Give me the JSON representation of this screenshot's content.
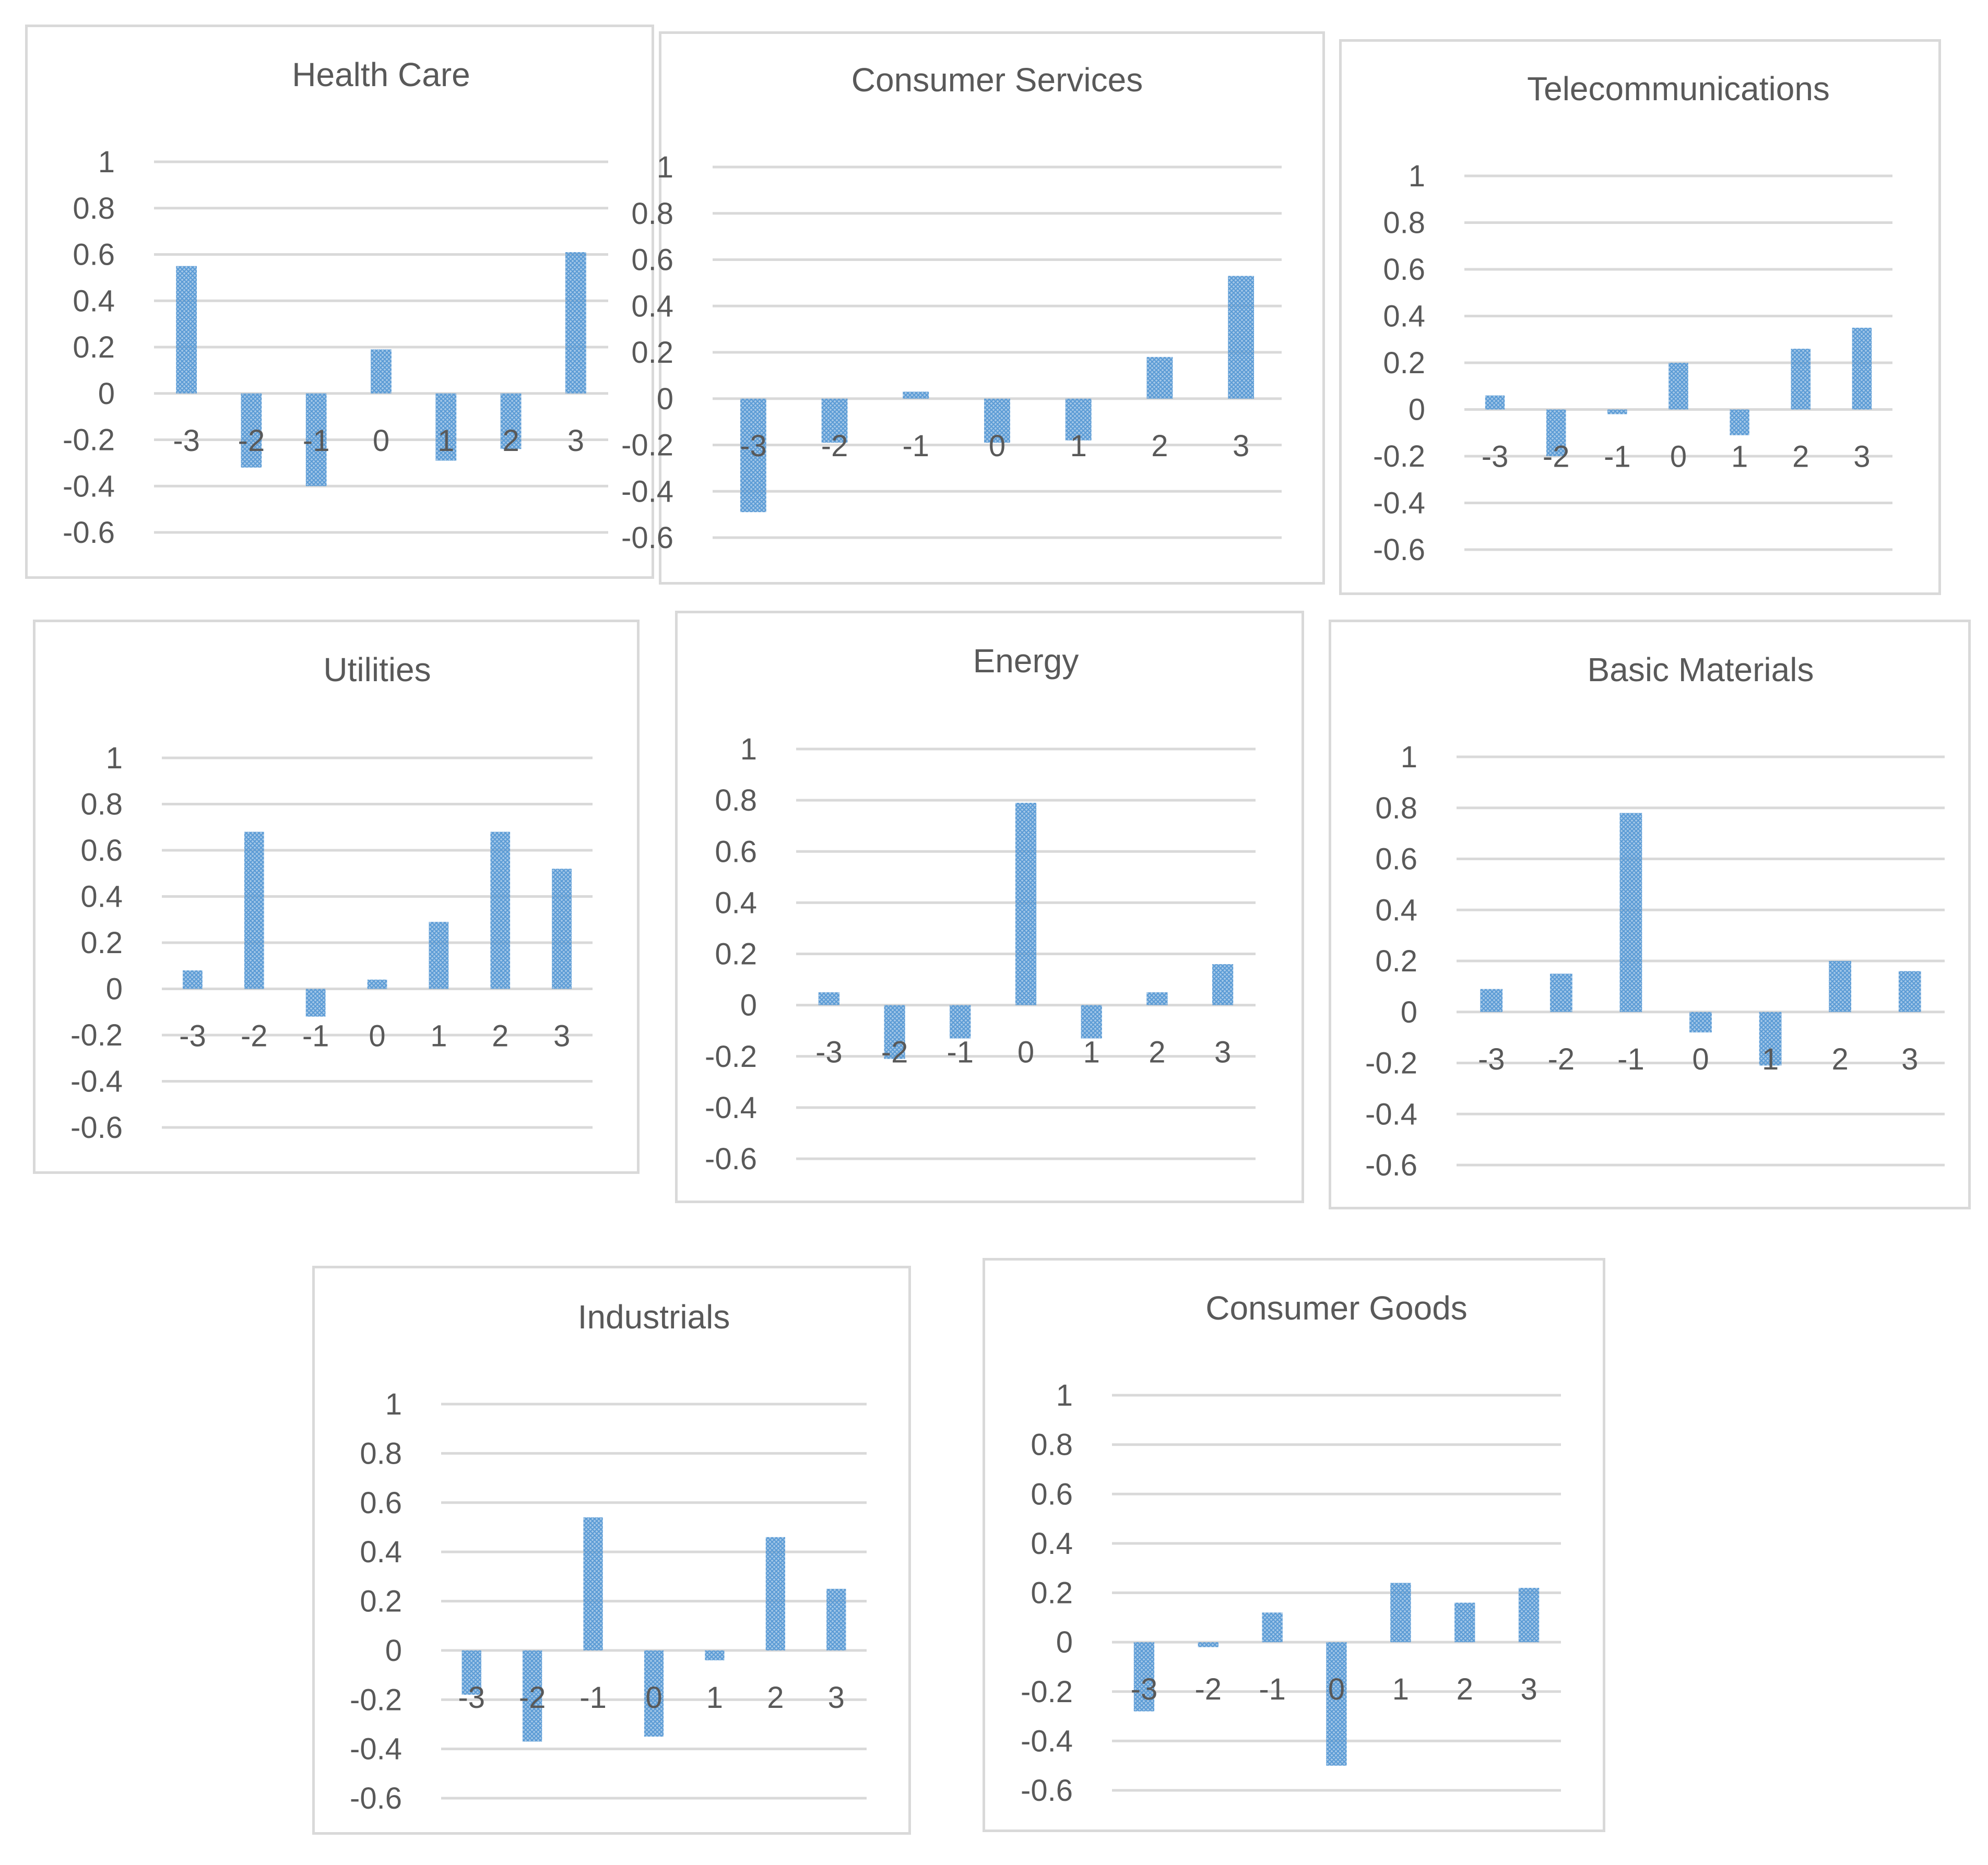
{
  "colors": {
    "bar": "#5b9bd5",
    "grid": "#d9d9d9",
    "text": "#595959",
    "border": "#d9d9d9"
  },
  "chart_data": [
    {
      "type": "bar",
      "title": "Health Care",
      "categories": [
        "-3",
        "-2",
        "-1",
        "0",
        "1",
        "2",
        "3"
      ],
      "values": [
        0.55,
        -0.32,
        -0.4,
        0.19,
        -0.29,
        -0.24,
        0.61
      ],
      "ylim": [
        -0.6,
        1
      ],
      "yticks": [
        "1",
        "0.8",
        "0.6",
        "0.4",
        "0.2",
        "0",
        "-0.2",
        "-0.4",
        "-0.6"
      ],
      "grid": true,
      "legend": "none"
    },
    {
      "type": "bar",
      "title": "Consumer Services",
      "categories": [
        "-3",
        "-2",
        "-1",
        "0",
        "1",
        "2",
        "3"
      ],
      "values": [
        -0.49,
        -0.19,
        0.03,
        -0.19,
        -0.18,
        0.18,
        0.53
      ],
      "ylim": [
        -0.6,
        1
      ],
      "yticks": [
        "1",
        "0.8",
        "0.6",
        "0.4",
        "0.2",
        "0",
        "-0.2",
        "-0.4",
        "-0.6"
      ],
      "grid": true,
      "legend": "none"
    },
    {
      "type": "bar",
      "title": "Telecommunications",
      "categories": [
        "-3",
        "-2",
        "-1",
        "0",
        "1",
        "2",
        "3"
      ],
      "values": [
        0.06,
        -0.2,
        -0.02,
        0.2,
        -0.11,
        0.26,
        0.35
      ],
      "ylim": [
        -0.6,
        1
      ],
      "yticks": [
        "1",
        "0.8",
        "0.6",
        "0.4",
        "0.2",
        "0",
        "-0.2",
        "-0.4",
        "-0.6"
      ],
      "grid": true,
      "legend": "none"
    },
    {
      "type": "bar",
      "title": "Utilities",
      "categories": [
        "-3",
        "-2",
        "-1",
        "0",
        "1",
        "2",
        "3"
      ],
      "values": [
        0.08,
        0.68,
        -0.12,
        0.04,
        0.29,
        0.68,
        0.52
      ],
      "ylim": [
        -0.6,
        1
      ],
      "yticks": [
        "1",
        "0.8",
        "0.6",
        "0.4",
        "0.2",
        "0",
        "-0.2",
        "-0.4",
        "-0.6"
      ],
      "grid": true,
      "legend": "none"
    },
    {
      "type": "bar",
      "title": "Energy",
      "categories": [
        "-3",
        "-2",
        "-1",
        "0",
        "1",
        "2",
        "3"
      ],
      "values": [
        0.05,
        -0.21,
        -0.13,
        0.79,
        -0.13,
        0.05,
        0.16
      ],
      "ylim": [
        -0.6,
        1
      ],
      "yticks": [
        "1",
        "0.8",
        "0.6",
        "0.4",
        "0.2",
        "0",
        "-0.2",
        "-0.4",
        "-0.6"
      ],
      "grid": true,
      "legend": "none"
    },
    {
      "type": "bar",
      "title": "Basic Materials",
      "categories": [
        "-3",
        "-2",
        "-1",
        "0",
        "1",
        "2",
        "3"
      ],
      "values": [
        0.09,
        0.15,
        0.78,
        -0.08,
        -0.21,
        0.2,
        0.16
      ],
      "ylim": [
        -0.6,
        1
      ],
      "yticks": [
        "1",
        "0.8",
        "0.6",
        "0.4",
        "0.2",
        "0",
        "-0.2",
        "-0.4",
        "-0.6"
      ],
      "grid": true,
      "legend": "none"
    },
    {
      "type": "bar",
      "title": "Industrials",
      "categories": [
        "-3",
        "-2",
        "-1",
        "0",
        "1",
        "2",
        "3"
      ],
      "values": [
        -0.18,
        -0.37,
        0.54,
        -0.35,
        -0.04,
        0.46,
        0.25
      ],
      "ylim": [
        -0.6,
        1
      ],
      "yticks": [
        "1",
        "0.8",
        "0.6",
        "0.4",
        "0.2",
        "0",
        "-0.2",
        "-0.4",
        "-0.6"
      ],
      "grid": true,
      "legend": "none"
    },
    {
      "type": "bar",
      "title": "Consumer Goods",
      "categories": [
        "-3",
        "-2",
        "-1",
        "0",
        "1",
        "2",
        "3"
      ],
      "values": [
        -0.28,
        -0.02,
        0.12,
        -0.5,
        0.24,
        0.16,
        0.22
      ],
      "ylim": [
        -0.6,
        1
      ],
      "yticks": [
        "1",
        "0.8",
        "0.6",
        "0.4",
        "0.2",
        "0",
        "-0.2",
        "-0.4",
        "-0.6"
      ],
      "grid": true,
      "legend": "none"
    }
  ]
}
